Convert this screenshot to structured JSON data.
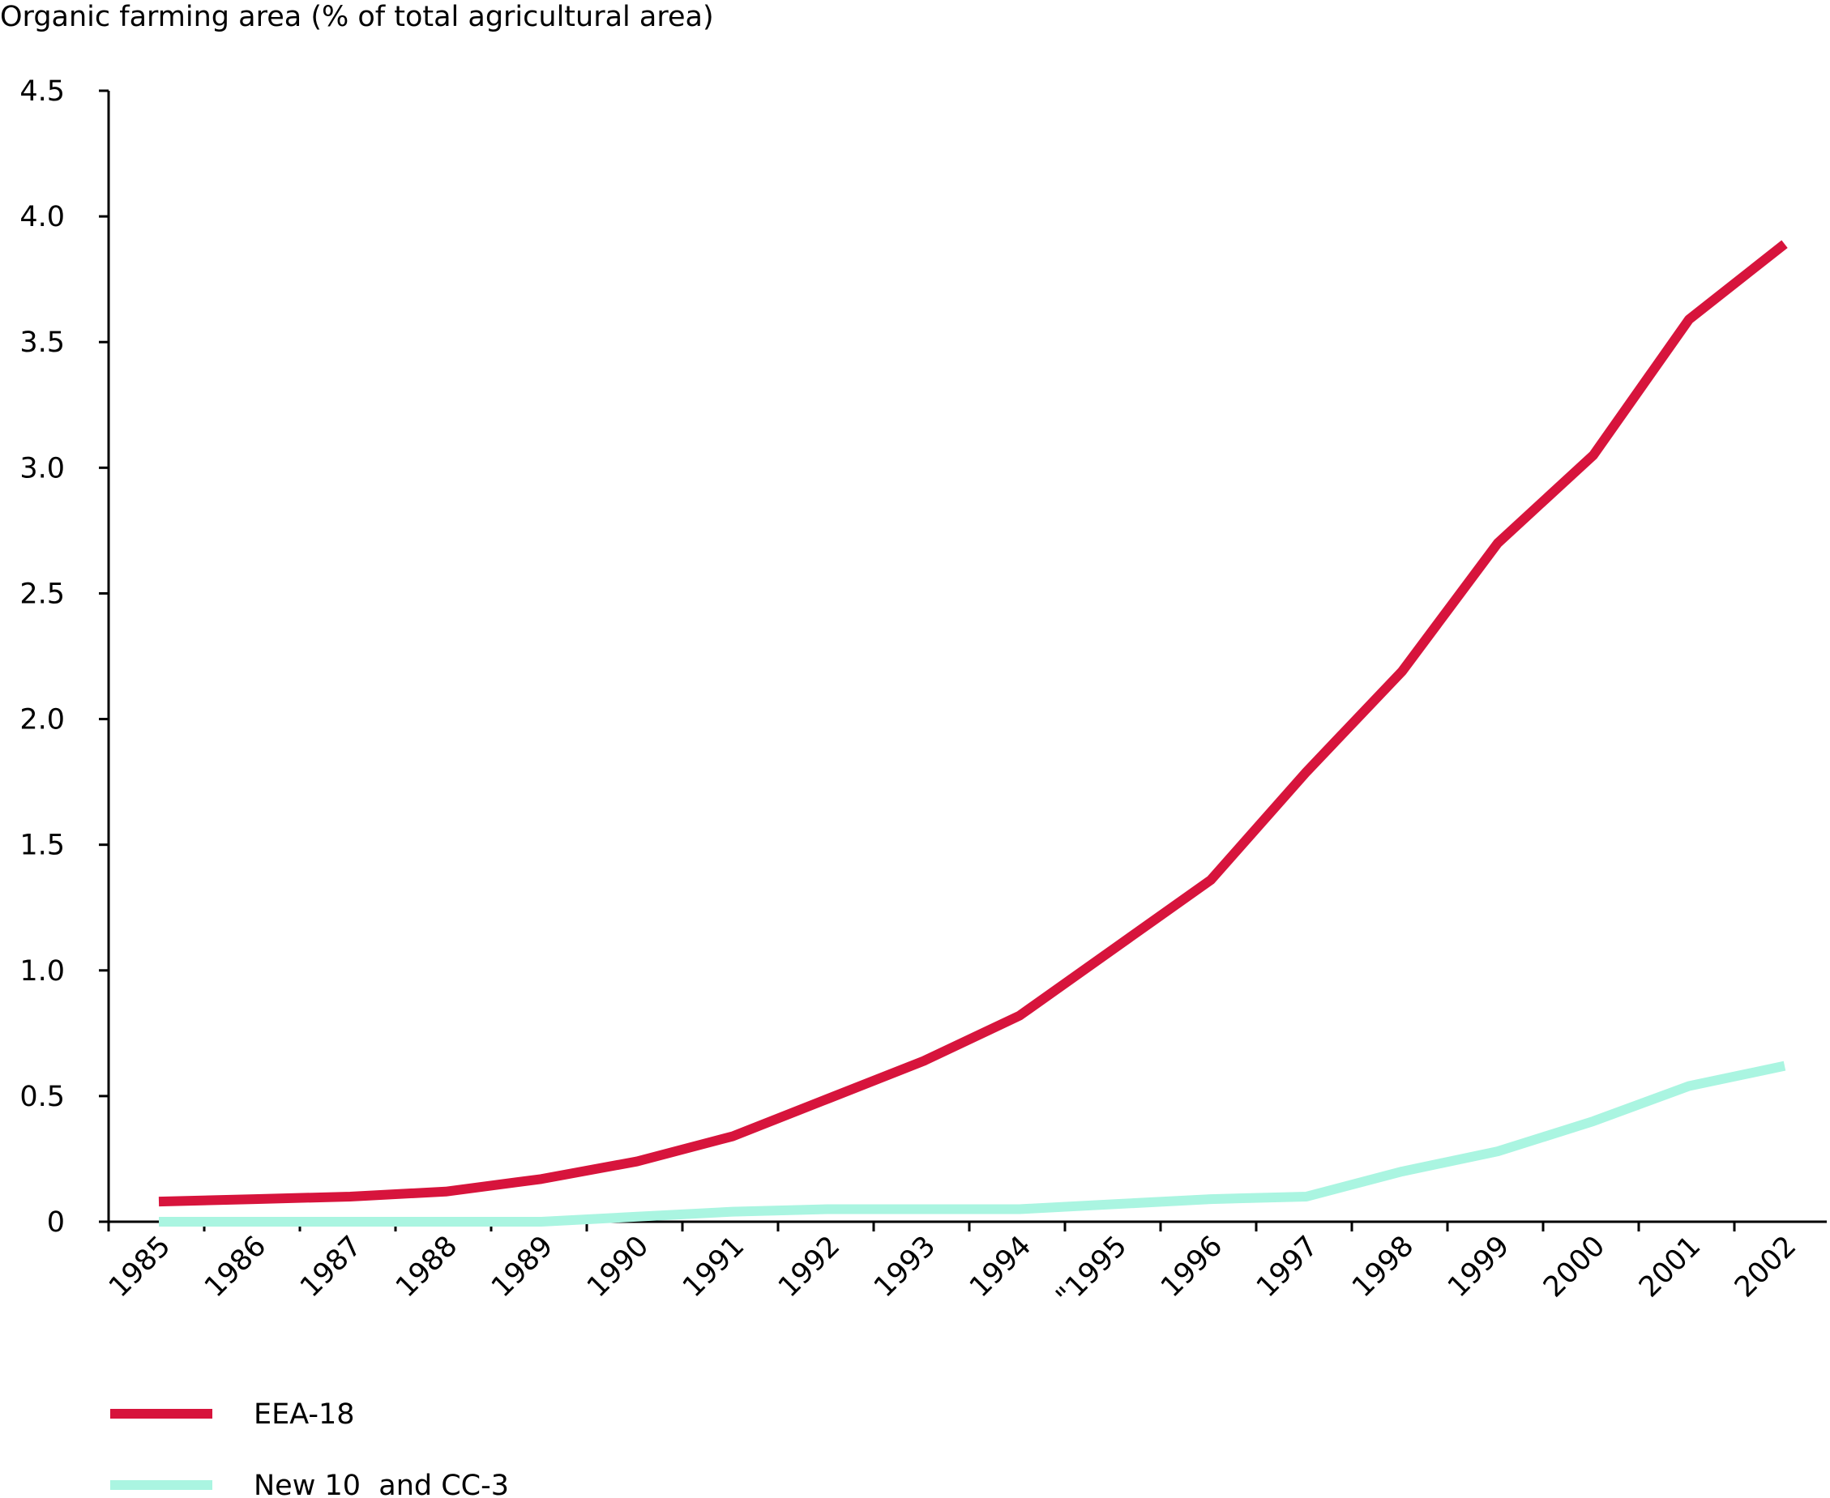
{
  "chart_data": {
    "type": "line",
    "ylabel": "Organic farming area (% of total agricultural area)",
    "categories": [
      "1985",
      "1986",
      "1987",
      "1988",
      "1989",
      "1990",
      "1991",
      "1992",
      "1993",
      "1994",
      "\"1995",
      "1996",
      "1997",
      "1998",
      "1999",
      "2000",
      "2001",
      "2002"
    ],
    "y_ticks": [
      "0",
      "0.5",
      "1.0",
      "1.5",
      "2.0",
      "2.5",
      "3.0",
      "3.5",
      "4.0",
      "4.5"
    ],
    "ylim": [
      0,
      4.5
    ],
    "grid": false,
    "legend_position": "bottom-left",
    "series": [
      {
        "name": "EEA-18",
        "color": "#d7143c",
        "values": [
          0.08,
          0.09,
          0.1,
          0.12,
          0.17,
          0.24,
          0.34,
          0.49,
          0.64,
          0.82,
          1.09,
          1.36,
          1.79,
          2.19,
          2.7,
          3.05,
          3.59,
          3.89
        ]
      },
      {
        "name": "New 10  and CC-3",
        "color": "#aaf5e1",
        "values": [
          0.0,
          0.0,
          0.0,
          0.0,
          0.0,
          0.02,
          0.04,
          0.05,
          0.05,
          0.05,
          0.07,
          0.09,
          0.1,
          0.2,
          0.28,
          0.4,
          0.54,
          0.62
        ]
      }
    ]
  }
}
